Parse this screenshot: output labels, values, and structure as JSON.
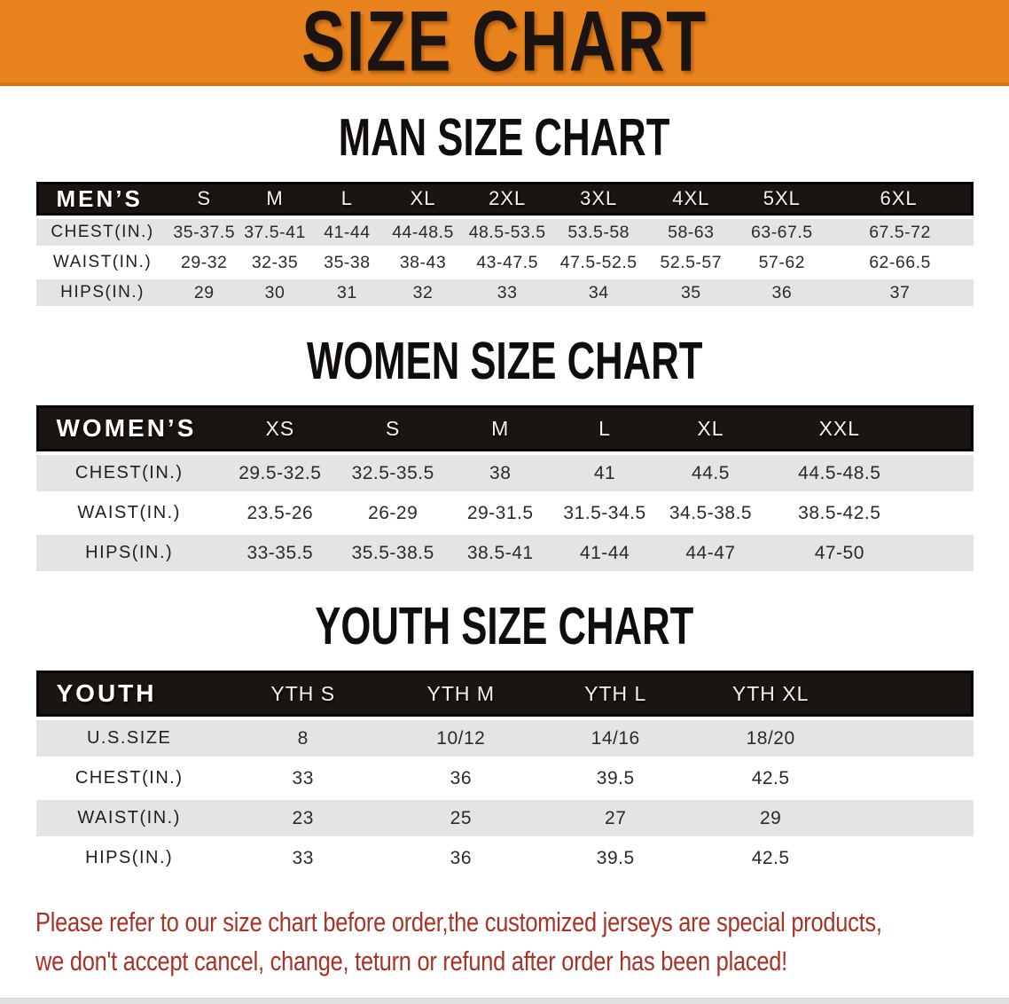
{
  "banner": {
    "title": "SIZE CHART"
  },
  "colors": {
    "banner-bg": "#E8821C",
    "header-bg": "#1A1511",
    "row-alt": "#E4E4E4",
    "disclaimer-color": "#A93226"
  },
  "sections": [
    {
      "heading": "MAN SIZE CHART",
      "table": {
        "header": [
          "MEN’S",
          "S",
          "M",
          "L",
          "XL",
          "2XL",
          "3XL",
          "4XL",
          "5XL",
          "6XL"
        ],
        "rows": [
          {
            "label": "CHEST(IN.)",
            "values": [
              "35-37.5",
              "37.5-41",
              "41-44",
              "44-48.5",
              "48.5-53.5",
              "53.5-58",
              "58-63",
              "63-67.5",
              "67.5-72"
            ]
          },
          {
            "label": "WAIST(IN.)",
            "values": [
              "29-32",
              "32-35",
              "35-38",
              "38-43",
              "43-47.5",
              "47.5-52.5",
              "52.5-57",
              "57-62",
              "62-66.5"
            ]
          },
          {
            "label": "HIPS(IN.)",
            "values": [
              "29",
              "30",
              "31",
              "32",
              "33",
              "34",
              "35",
              "36",
              "37"
            ]
          }
        ]
      }
    },
    {
      "heading": "WOMEN SIZE CHART",
      "table": {
        "header": [
          "WOMEN’S",
          "XS",
          "S",
          "M",
          "L",
          "XL",
          "XXL"
        ],
        "rows": [
          {
            "label": "CHEST(IN.)",
            "values": [
              "29.5-32.5",
              "32.5-35.5",
              "38",
              "41",
              "44.5",
              "44.5-48.5"
            ]
          },
          {
            "label": "WAIST(IN.)",
            "values": [
              "23.5-26",
              "26-29",
              "29-31.5",
              "31.5-34.5",
              "34.5-38.5",
              "38.5-42.5"
            ]
          },
          {
            "label": "HIPS(IN.)",
            "values": [
              "33-35.5",
              "35.5-38.5",
              "38.5-41",
              "41-44",
              "44-47",
              "47-50"
            ]
          }
        ]
      }
    },
    {
      "heading": "YOUTH SIZE CHART",
      "table": {
        "header": [
          "YOUTH",
          "YTH S",
          "YTH M",
          "YTH L",
          "YTH XL"
        ],
        "rows": [
          {
            "label": "U.S.SIZE",
            "values": [
              "8",
              "10/12",
              "14/16",
              "18/20"
            ]
          },
          {
            "label": "CHEST(IN.)",
            "values": [
              "33",
              "36",
              "39.5",
              "42.5"
            ]
          },
          {
            "label": "WAIST(IN.)",
            "values": [
              "23",
              "25",
              "27",
              "29"
            ]
          },
          {
            "label": "HIPS(IN.)",
            "values": [
              "33",
              "36",
              "39.5",
              "42.5"
            ]
          }
        ]
      }
    }
  ],
  "disclaimer": {
    "line1": "Please refer to our size chart before order,the customized jerseys are special products,",
    "line2": "we don't accept cancel, change, teturn or refund after order has been placed!"
  }
}
